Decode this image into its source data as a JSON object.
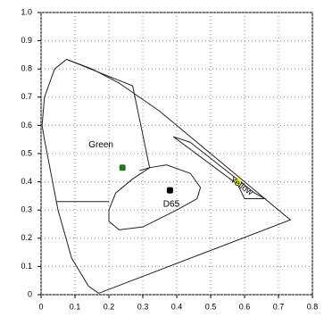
{
  "chart_data": {
    "type": "scatter",
    "xlim": [
      0,
      0.8
    ],
    "ylim": [
      0,
      1
    ],
    "xticks": [
      0,
      0.1,
      0.2,
      0.3,
      0.4,
      0.5,
      0.6,
      0.7,
      0.8
    ],
    "yticks": [
      0,
      0.1,
      0.2,
      0.3,
      0.4,
      0.5,
      0.6,
      0.7,
      0.8,
      0.9,
      {
        "value": 1,
        "label": "1.0"
      }
    ],
    "grid": true,
    "outlines": [
      {
        "x": [
          0.17,
          0.14,
          0.09,
          0.05,
          0.01,
          0.003,
          0.01,
          0.04,
          0.075,
          0.15,
          0.23,
          0.35,
          0.45,
          0.55,
          0.65,
          0.735,
          0.17
        ],
        "y": [
          0.005,
          0.03,
          0.13,
          0.3,
          0.55,
          0.6,
          0.7,
          0.8,
          0.834,
          0.8,
          0.75,
          0.65,
          0.55,
          0.45,
          0.35,
          0.265,
          0.005
        ]
      },
      {
        "x": [
          0.075,
          0.27,
          0.32,
          0.29
        ],
        "y": [
          0.834,
          0.74,
          0.45,
          0.44
        ]
      },
      {
        "x": [
          0.045,
          0.2
        ],
        "y": [
          0.33,
          0.33
        ]
      },
      {
        "x": [
          0.2,
          0.2,
          0.23,
          0.3,
          0.4,
          0.46,
          0.47,
          0.44,
          0.37,
          0.32,
          0.27,
          0.22,
          0.2
        ],
        "y": [
          0.3,
          0.26,
          0.23,
          0.24,
          0.3,
          0.34,
          0.38,
          0.43,
          0.46,
          0.45,
          0.41,
          0.36,
          0.3
        ]
      },
      {
        "x": [
          0.44,
          0.39,
          0.58,
          0.6,
          0.66,
          0.63,
          0.44
        ],
        "y": [
          0.54,
          0.56,
          0.39,
          0.34,
          0.34,
          0.36,
          0.54
        ]
      }
    ],
    "points": [
      {
        "x": 0.24,
        "y": 0.45,
        "color": "#1e7a1e"
      },
      {
        "x": 0.38,
        "y": 0.37,
        "color": "#000000"
      },
      {
        "x": 0.58,
        "y": 0.4,
        "color": "#f2f200"
      }
    ],
    "annotations": [
      {
        "text": "Green",
        "x": 0.14,
        "y": 0.53,
        "angle": 0
      },
      {
        "text": "D65",
        "x": 0.36,
        "y": 0.32,
        "angle": 0
      },
      {
        "text": "Yellow",
        "x": 0.56,
        "y": 0.41,
        "angle": 35
      }
    ]
  }
}
